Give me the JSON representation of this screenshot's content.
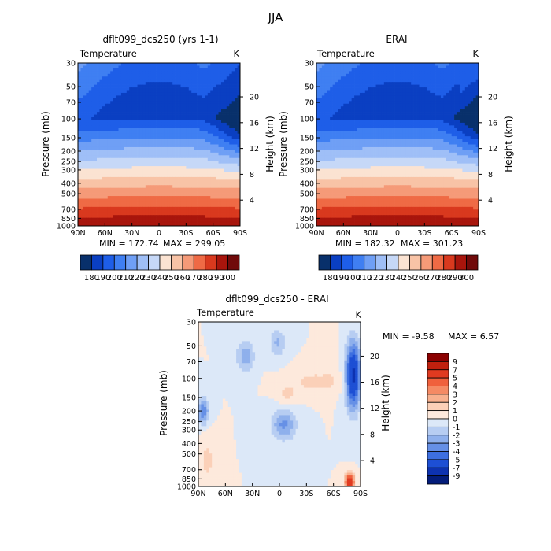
{
  "page": {
    "title": "JJA"
  },
  "chart_data": [
    {
      "type": "heatmap",
      "title": "dflt099_dcs250 (yrs 1-1)",
      "variable": "Temperature",
      "units": "K",
      "ylabel": "Pressure (mb)",
      "ylabel_right": "Height (km)",
      "xlabel": "",
      "x_ticks": [
        "90N",
        "60N",
        "30N",
        "0",
        "30S",
        "60S",
        "90S"
      ],
      "y_ticks": [
        "30",
        "50",
        "70",
        "100",
        "150",
        "200",
        "250",
        "300",
        "400",
        "500",
        "700",
        "850",
        "1000"
      ],
      "y_right_ticks": [
        "20",
        "16",
        "12",
        "8",
        "4"
      ],
      "min": 172.74,
      "max": 299.05,
      "min_text": "MIN = 172.74",
      "max_text": "MAX = 299.05",
      "colorbar_labels": [
        "180",
        "190",
        "200",
        "210",
        "220",
        "230",
        "240",
        "250",
        "260",
        "270",
        "280",
        "290",
        "300"
      ],
      "palette": [
        "#08306b",
        "#0a3fc2",
        "#1e5ee8",
        "#3f7ff2",
        "#6f9ff5",
        "#9fbff7",
        "#c6d8f7",
        "#fbe3d2",
        "#f8c3a6",
        "#f59a78",
        "#ef6a45",
        "#d9391e",
        "#a8150c",
        "#700a0a"
      ]
    },
    {
      "type": "heatmap",
      "title": "ERAI",
      "variable": "Temperature",
      "units": "K",
      "ylabel": "Pressure (mb)",
      "ylabel_right": "Height (km)",
      "xlabel": "",
      "x_ticks": [
        "90N",
        "60N",
        "30N",
        "0",
        "30S",
        "60S",
        "90S"
      ],
      "y_ticks": [
        "30",
        "50",
        "70",
        "100",
        "150",
        "200",
        "250",
        "300",
        "400",
        "500",
        "700",
        "850",
        "1000"
      ],
      "y_right_ticks": [
        "20",
        "16",
        "12",
        "8",
        "4"
      ],
      "min": 182.32,
      "max": 301.23,
      "min_text": "MIN = 182.32",
      "max_text": "MAX = 301.23",
      "colorbar_labels": [
        "180",
        "190",
        "200",
        "210",
        "220",
        "230",
        "240",
        "250",
        "260",
        "270",
        "280",
        "290",
        "300"
      ],
      "palette": [
        "#08306b",
        "#0a3fc2",
        "#1e5ee8",
        "#3f7ff2",
        "#6f9ff5",
        "#9fbff7",
        "#c6d8f7",
        "#fbe3d2",
        "#f8c3a6",
        "#f59a78",
        "#ef6a45",
        "#d9391e",
        "#a8150c",
        "#700a0a"
      ]
    },
    {
      "type": "heatmap",
      "title": "dflt099_dcs250 - ERAI",
      "variable": "Temperature",
      "units": "K",
      "ylabel": "Pressure (mb)",
      "ylabel_right": "Height (km)",
      "xlabel": "",
      "x_ticks": [
        "90N",
        "60N",
        "30N",
        "0",
        "30S",
        "60S",
        "90S"
      ],
      "y_ticks": [
        "30",
        "50",
        "70",
        "100",
        "150",
        "200",
        "250",
        "300",
        "400",
        "500",
        "700",
        "850",
        "1000"
      ],
      "y_right_ticks": [
        "20",
        "16",
        "12",
        "8",
        "4"
      ],
      "min": -9.58,
      "max": 6.57,
      "min_text": "MIN = -9.58",
      "max_text": "MAX = 6.57",
      "colorbar_labels": [
        "9",
        "7",
        "5",
        "4",
        "3",
        "2",
        "1",
        "0",
        "-1",
        "-2",
        "-3",
        "-4",
        "-5",
        "-7",
        "-9"
      ],
      "palette": [
        "#8b0000",
        "#c0200e",
        "#e03a20",
        "#f0603c",
        "#f58a64",
        "#f8b08e",
        "#fbd0b8",
        "#fde9dc",
        "#dce8f8",
        "#b7cdf2",
        "#8fb0ec",
        "#6690e6",
        "#3d6fe0",
        "#1d4fd4",
        "#0d32b0",
        "#031c7a"
      ]
    }
  ]
}
